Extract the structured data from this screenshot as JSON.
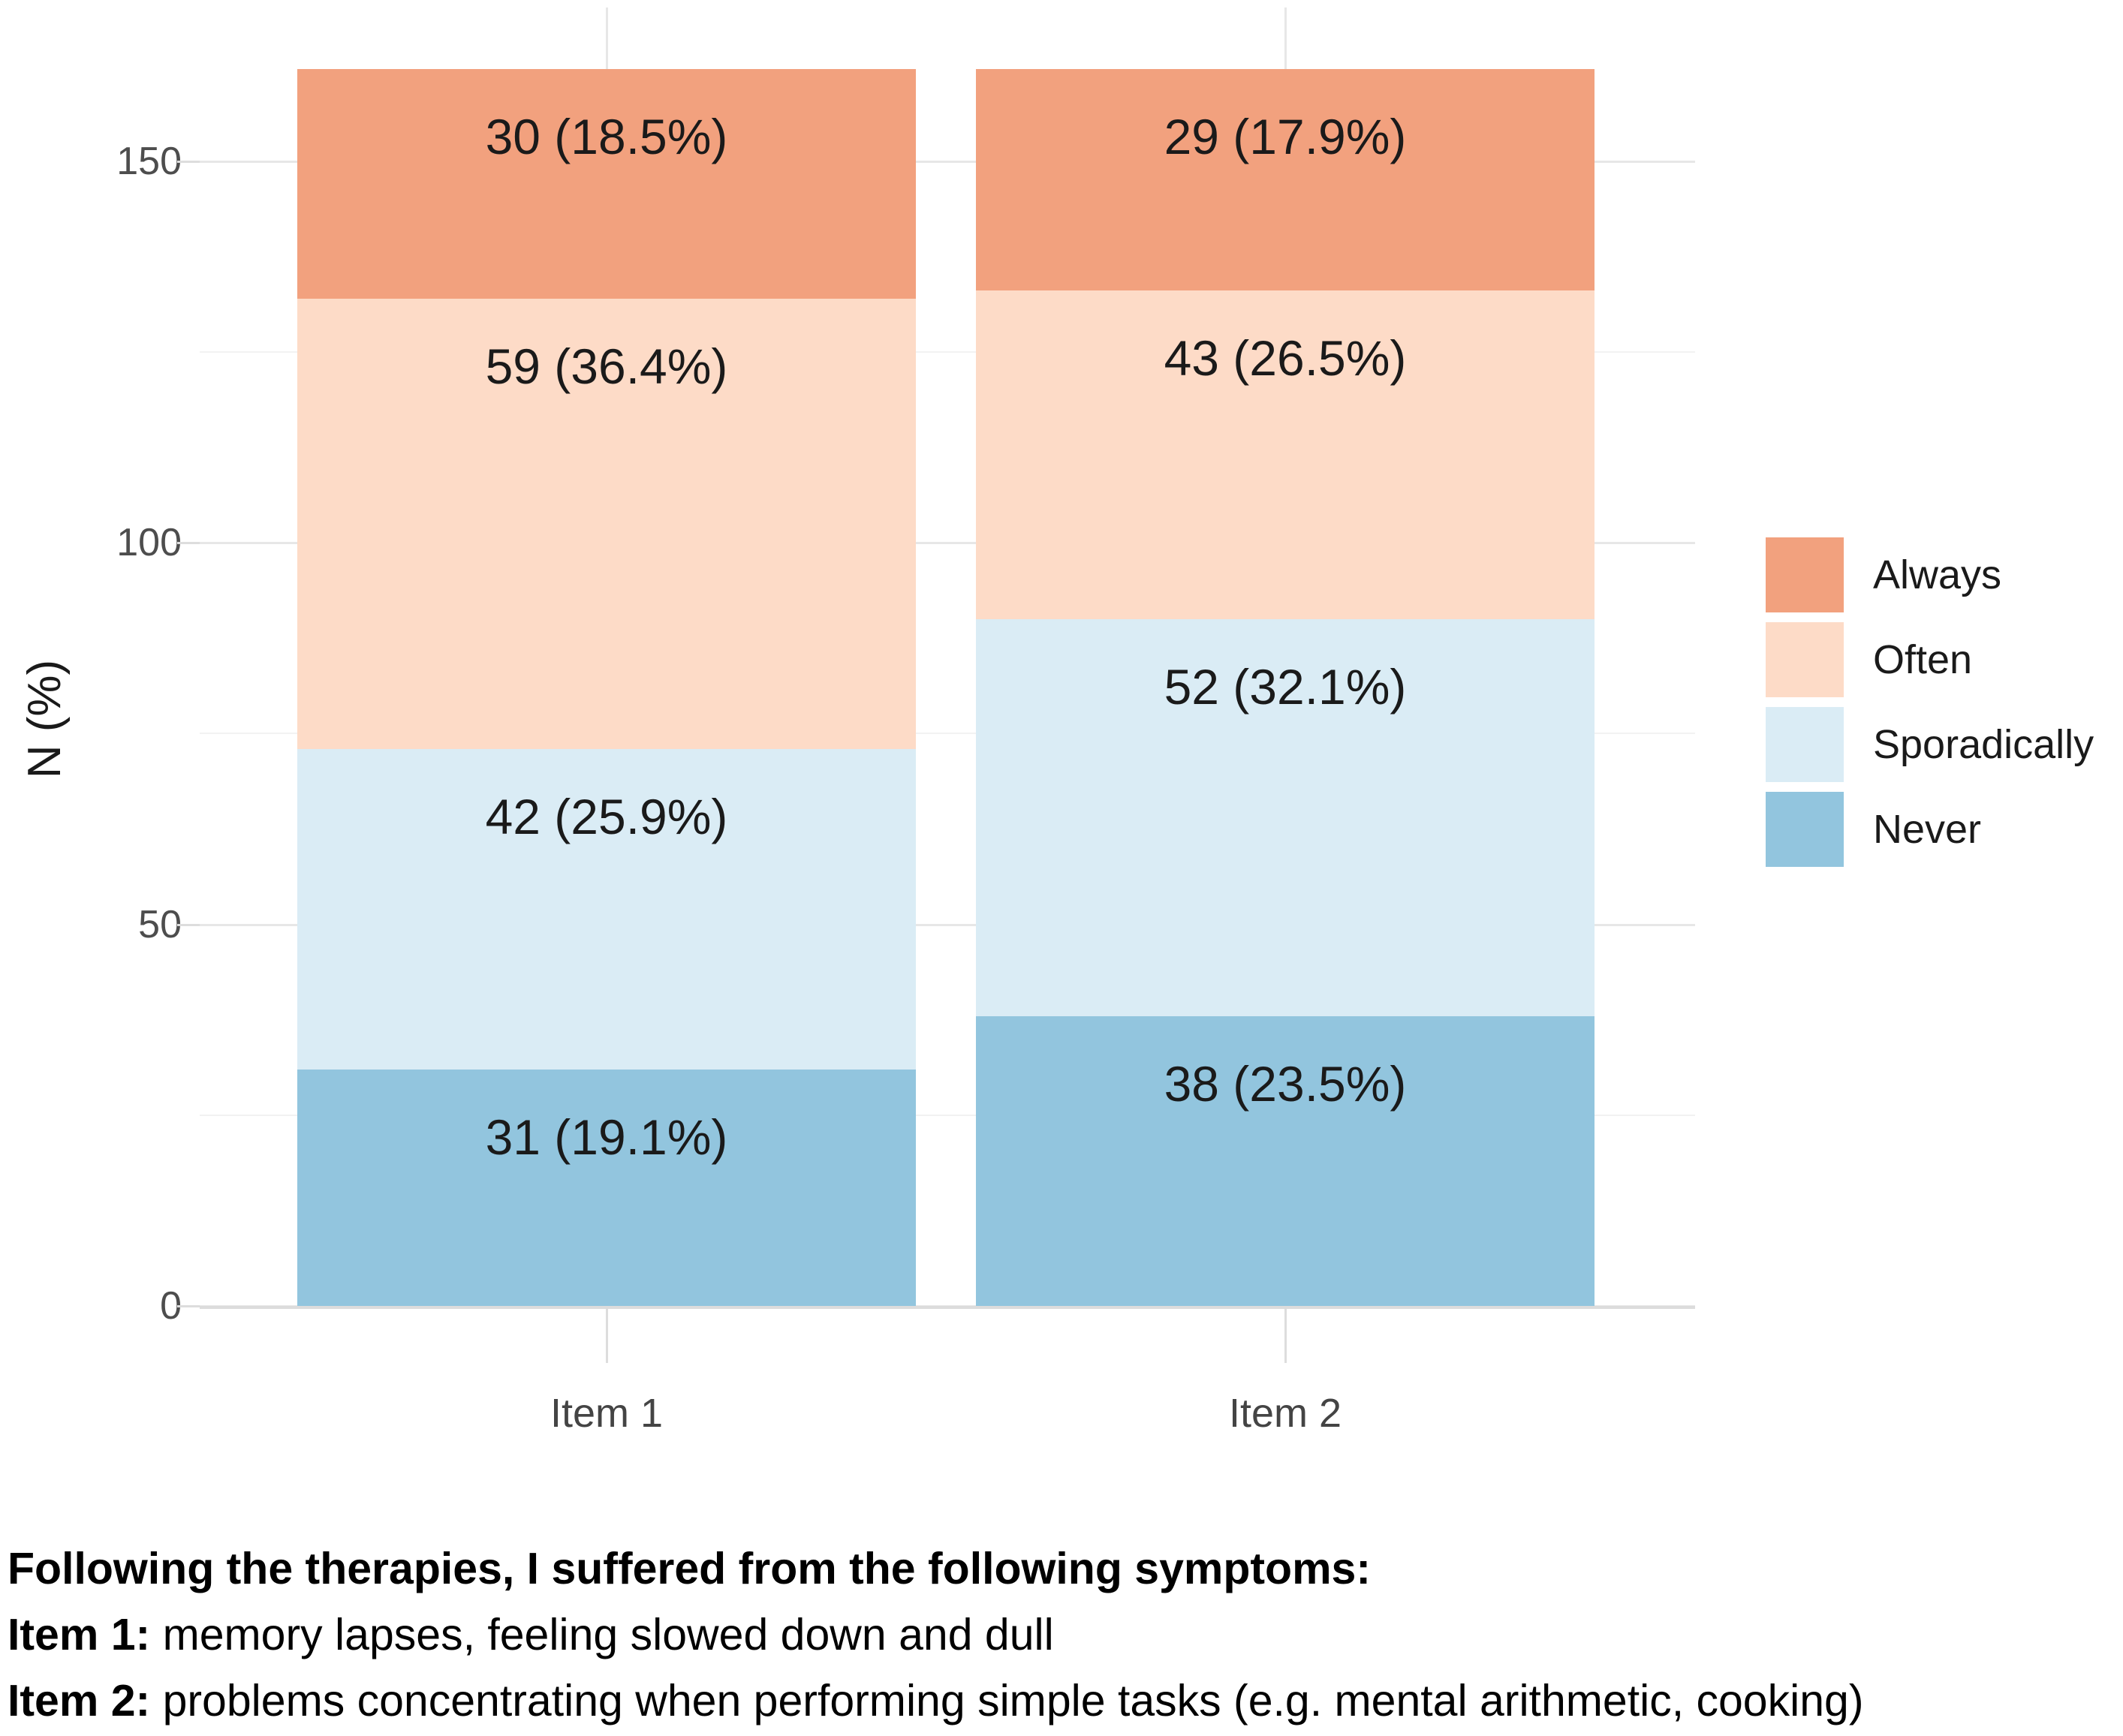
{
  "chart_data": {
    "type": "bar",
    "variant": "stacked-vertical",
    "title": "",
    "xlabel": "",
    "ylabel": "N (%)",
    "categories": [
      "Item 1",
      "Item 2"
    ],
    "y_ticks": [
      0,
      50,
      100,
      150
    ],
    "y_minor_ticks": [
      25,
      75,
      125
    ],
    "ylim": [
      0,
      170
    ],
    "grid": true,
    "legend_position": "right",
    "series": [
      {
        "name": "Always",
        "color": "#F2A17E",
        "values": [
          30,
          29
        ],
        "labels": [
          "30 (18.5%)",
          "29 (17.9%)"
        ]
      },
      {
        "name": "Often",
        "color": "#FDDBC7",
        "values": [
          59,
          43
        ],
        "labels": [
          "59 (36.4%)",
          "43 (26.5%)"
        ]
      },
      {
        "name": "Sporadically",
        "color": "#DAECF5",
        "values": [
          42,
          52
        ],
        "labels": [
          "42 (25.9%)",
          "52 (32.1%)"
        ]
      },
      {
        "name": "Never",
        "color": "#92C5DE",
        "values": [
          31,
          38
        ],
        "labels": [
          "31 (19.1%)",
          "38 (23.5%)"
        ]
      }
    ],
    "totals": [
      162,
      162
    ]
  },
  "caption": {
    "line1": "Following the therapies, I suffered from the following symptoms:",
    "item1_label": "Item 1:",
    "item1_text": " memory lapses, feeling slowed down and dull",
    "item2_label": "Item 2:",
    "item2_text": " problems concentrating when performing simple tasks (e.g. mental arithmetic, cooking)"
  }
}
